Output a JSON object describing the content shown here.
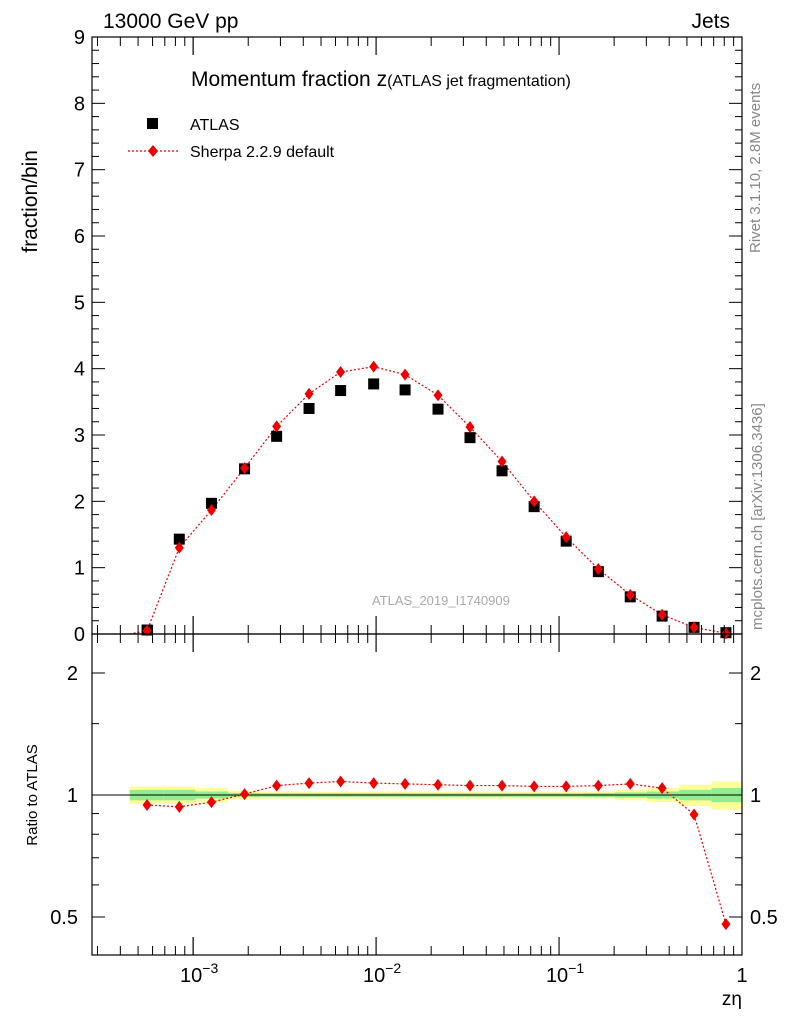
{
  "header": {
    "left_label": "13000 GeV pp",
    "right_label": "Jets"
  },
  "side_text": {
    "rivet": "Rivet 3.1.10,  2.8M events",
    "mcplots": "mcplots.cern.ch [arXiv:1306.3436]"
  },
  "chart_data": [
    {
      "type": "scatter",
      "panel": "main",
      "title": "Momentum fraction z",
      "subtitle": "(ATLAS jet fragmentation)",
      "xlabel": "zη",
      "ylabel": "fraction/bin",
      "x_scale": "log",
      "xlim": [
        0.00028,
        1.0
      ],
      "ylim": [
        0,
        9
      ],
      "x_tick_labels": [
        {
          "value": 0.001,
          "base": "10",
          "exp": "−3"
        },
        {
          "value": 0.01,
          "base": "10",
          "exp": "−2"
        },
        {
          "value": 0.1,
          "base": "10",
          "exp": "−1"
        },
        {
          "value": 1,
          "base": "1",
          "exp": ""
        }
      ],
      "y_tick_labels": [
        "0",
        "1",
        "2",
        "3",
        "4",
        "5",
        "6",
        "7",
        "8",
        "9"
      ],
      "legend_position": "top-left",
      "watermark": "ATLAS_2019_I1740909",
      "series": [
        {
          "name": "ATLAS",
          "marker": "square",
          "color": "#000000",
          "x": [
            0.00056,
            0.00084,
            0.00126,
            0.00191,
            0.00286,
            0.0043,
            0.0064,
            0.0097,
            0.0144,
            0.0218,
            0.0326,
            0.0488,
            0.0731,
            0.1094,
            0.164,
            0.245,
            0.366,
            0.547,
            0.817
          ],
          "y": [
            0.06,
            1.43,
            1.97,
            2.49,
            2.98,
            3.4,
            3.67,
            3.77,
            3.68,
            3.39,
            2.96,
            2.46,
            1.92,
            1.4,
            0.94,
            0.56,
            0.27,
            0.1,
            0.02
          ]
        },
        {
          "name": "Sherpa 2.2.9 default",
          "marker": "diamond",
          "line": "dotted",
          "color": "#ee0000",
          "x": [
            0.00045,
            0.00056,
            0.00084,
            0.00126,
            0.00191,
            0.00286,
            0.0043,
            0.0064,
            0.0097,
            0.0144,
            0.0218,
            0.0326,
            0.0488,
            0.0731,
            0.1094,
            0.164,
            0.245,
            0.366,
            0.547,
            0.817
          ],
          "y": [
            -0.1,
            0.05,
            1.3,
            1.87,
            2.5,
            3.13,
            3.62,
            3.95,
            4.03,
            3.91,
            3.6,
            3.12,
            2.6,
            2.0,
            1.46,
            0.98,
            0.59,
            0.29,
            0.1,
            0.01
          ]
        }
      ]
    },
    {
      "type": "line",
      "panel": "ratio",
      "ylabel": "Ratio to ATLAS",
      "x_scale": "log",
      "xlim": [
        0.00028,
        1.0
      ],
      "ylim": [
        0.35,
        2.3
      ],
      "y_tick_labels": [
        "0.5",
        "1",
        "2"
      ],
      "bands": {
        "x_edges": [
          0.00045,
          0.00069,
          0.00103,
          0.00155,
          0.00233,
          0.0035,
          0.0052,
          0.0079,
          0.0118,
          0.0177,
          0.0266,
          0.0399,
          0.0598,
          0.0897,
          0.1345,
          0.2017,
          0.3025,
          0.4536,
          0.6804,
          1.0
        ],
        "yellow_half_width": [
          0.05,
          0.05,
          0.04,
          0.025,
          0.02,
          0.02,
          0.02,
          0.02,
          0.02,
          0.02,
          0.02,
          0.02,
          0.02,
          0.02,
          0.02,
          0.03,
          0.04,
          0.06,
          0.08
        ],
        "green_half_width": [
          0.03,
          0.03,
          0.02,
          0.012,
          0.01,
          0.01,
          0.01,
          0.01,
          0.01,
          0.01,
          0.01,
          0.01,
          0.01,
          0.01,
          0.012,
          0.015,
          0.02,
          0.03,
          0.04
        ],
        "yellow_color": "#ffff99",
        "green_color": "#90ee90"
      },
      "series": [
        {
          "name": "Sherpa 2.2.9 default",
          "color": "#ee0000",
          "x": [
            0.00056,
            0.00084,
            0.00126,
            0.00191,
            0.00286,
            0.0043,
            0.0064,
            0.0097,
            0.0144,
            0.0218,
            0.0326,
            0.0488,
            0.0731,
            0.1094,
            0.164,
            0.245,
            0.366,
            0.547,
            0.817
          ],
          "y": [
            0.945,
            0.935,
            0.96,
            1.005,
            1.055,
            1.07,
            1.08,
            1.07,
            1.065,
            1.06,
            1.055,
            1.055,
            1.05,
            1.05,
            1.055,
            1.065,
            1.04,
            0.895,
            0.48
          ]
        }
      ]
    }
  ]
}
